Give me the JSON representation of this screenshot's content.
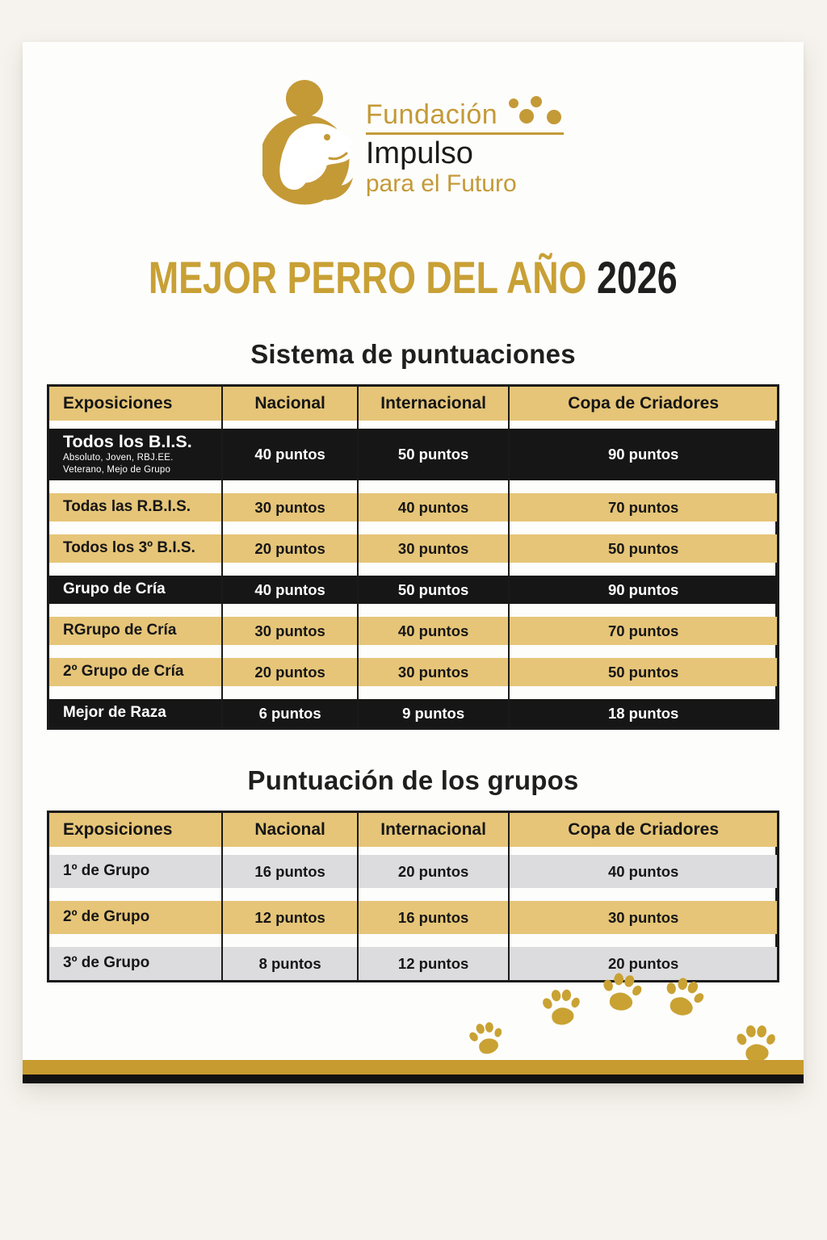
{
  "colors": {
    "page_bg": "#f6f3ee",
    "poster_bg": "#fdfdfc",
    "gold_accent": "#c49a37",
    "gold_title": "#c8a035",
    "band_gold": "#e6c578",
    "row_black": "#161616",
    "row_gray": "#dcdcde",
    "border": "#1a1a1a",
    "stripe_gold": "#c79b2f",
    "paw_gold": "#c9a233"
  },
  "logo": {
    "name_top": "Fundación",
    "name_mid": "Impulso",
    "name_bottom": "para el Futuro",
    "mark_icon": "dog-in-embrace-circle",
    "dots_icon": "four-gold-dots"
  },
  "title": {
    "main": "MEJOR PERRO DEL AÑO",
    "year": "2026"
  },
  "section1": {
    "heading": "Sistema de puntuaciones",
    "table": {
      "headers": [
        "Exposiciones",
        "Nacional",
        "Internacional",
        "Copa de Criadores"
      ],
      "rows": [
        {
          "label": "Todos los B.I.S.",
          "sub": [
            "Absoluto, Joven, RBJ.EE.",
            "Veterano, Mejo de Grupo"
          ],
          "values": [
            "40 puntos",
            "50 puntos",
            "90 puntos"
          ],
          "style": "black"
        },
        {
          "label": "Todas las R.B.I.S.",
          "values": [
            "30 puntos",
            "40 puntos",
            "70 puntos"
          ],
          "style": "gold"
        },
        {
          "label": "Todos los 3º B.I.S.",
          "values": [
            "20 puntos",
            "30 puntos",
            "50 puntos"
          ],
          "style": "gold"
        },
        {
          "label": "Grupo de Cría",
          "values": [
            "40 puntos",
            "50 puntos",
            "90 puntos"
          ],
          "style": "black"
        },
        {
          "label": "RGrupo de Cría",
          "values": [
            "30 puntos",
            "40 puntos",
            "70 puntos"
          ],
          "style": "gold"
        },
        {
          "label": "2º Grupo de Cría",
          "values": [
            "20 puntos",
            "30 puntos",
            "50 puntos"
          ],
          "style": "gold"
        },
        {
          "label": "Mejor de Raza",
          "values": [
            "6 puntos",
            "9 puntos",
            "18 puntos"
          ],
          "style": "black"
        }
      ]
    }
  },
  "section2": {
    "heading": "Puntuación de los grupos",
    "table": {
      "headers": [
        "Exposiciones",
        "Nacional",
        "Internacional",
        "Copa de Criadores"
      ],
      "rows": [
        {
          "label": "1º de Grupo",
          "values": [
            "16 puntos",
            "20 puntos",
            "40 puntos"
          ],
          "style": "gray"
        },
        {
          "label": "2º de Grupo",
          "values": [
            "12 puntos",
            "16 puntos",
            "30 puntos"
          ],
          "style": "gold"
        },
        {
          "label": "3º de Grupo",
          "values": [
            "8 puntos",
            "12 puntos",
            "20 puntos"
          ],
          "style": "gray"
        }
      ]
    }
  },
  "footer": {
    "paw_icon": "paw-print",
    "paw_count": 5
  }
}
